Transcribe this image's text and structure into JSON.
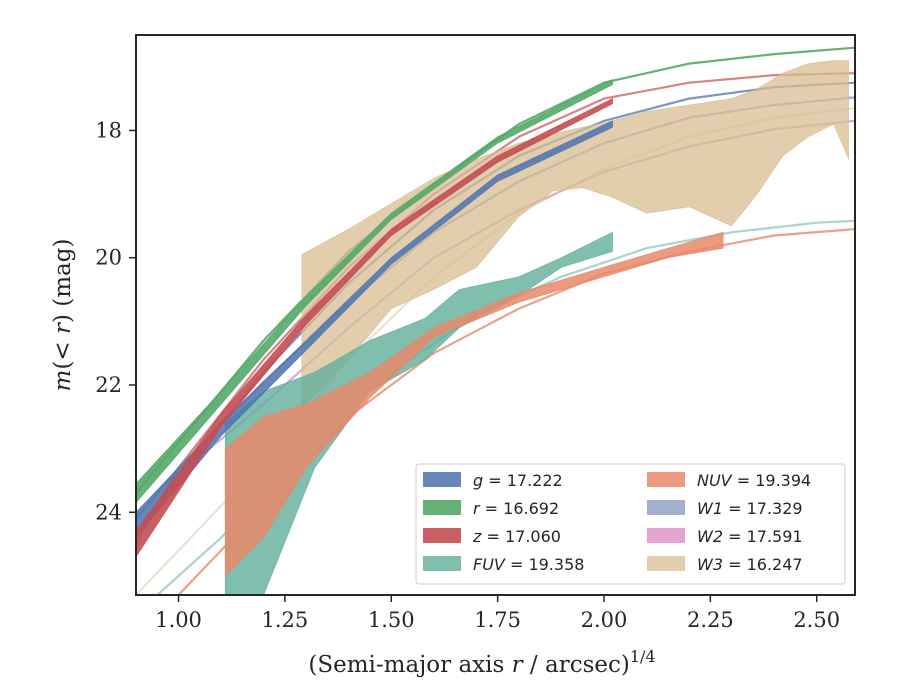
{
  "chart_data": {
    "type": "area",
    "xlabel": "(Semi-major axis r / arcsec)",
    "xlabel_parts": {
      "pre": "(Semi-major axis ",
      "var": "r",
      "post": " / arcsec)",
      "sup": "1/4"
    },
    "ylabel": "m(< r) (mag)",
    "ylabel_parts": {
      "m": "m",
      "open": "(",
      "lt": "<",
      "r": "r",
      "close": ")",
      "unit": " (mag)"
    },
    "xlim": [
      0.9,
      2.59
    ],
    "ylim": [
      25.3,
      16.5
    ],
    "y_inverted": true,
    "xticks": [
      "1.00",
      "1.25",
      "1.50",
      "1.75",
      "2.00",
      "2.25",
      "2.50"
    ],
    "yticks": [
      "18",
      "20",
      "22",
      "24"
    ],
    "legend_placement": "lower-right",
    "series": [
      {
        "name": "g",
        "name_display": "g = 17.222",
        "mag": "17.222",
        "color": "#4c72b0",
        "band_opacity": 0.85,
        "fit_opacity": 0.75,
        "x": [
          0.9,
          1.1,
          1.3,
          1.5,
          1.75,
          2.02
        ],
        "lo": [
          24.0,
          22.6,
          21.3,
          20.0,
          18.7,
          17.85
        ],
        "hi": [
          24.4,
          22.8,
          21.45,
          20.1,
          18.8,
          17.95
        ],
        "fit_x": [
          0.9,
          1.0,
          1.2,
          1.4,
          1.6,
          1.8,
          2.0,
          2.2,
          2.4,
          2.59
        ],
        "fit_y": [
          24.35,
          23.4,
          21.8,
          20.4,
          19.25,
          18.4,
          17.85,
          17.5,
          17.32,
          17.25
        ]
      },
      {
        "name": "r",
        "name_display": "r = 16.692",
        "mag": "16.692",
        "color": "#55a868",
        "band_opacity": 0.9,
        "fit_opacity": 0.9,
        "x": [
          0.9,
          1.1,
          1.3,
          1.5,
          1.75,
          2.02
        ],
        "lo": [
          23.55,
          22.1,
          20.6,
          19.3,
          18.1,
          17.2
        ],
        "hi": [
          23.85,
          22.3,
          20.75,
          19.4,
          18.2,
          17.28
        ],
        "fit_x": [
          0.9,
          1.0,
          1.2,
          1.4,
          1.6,
          1.8,
          2.0,
          2.2,
          2.4,
          2.59
        ],
        "fit_y": [
          23.7,
          22.9,
          21.3,
          19.9,
          18.85,
          17.9,
          17.25,
          16.95,
          16.8,
          16.7
        ]
      },
      {
        "name": "z",
        "name_display": "z = 17.060",
        "mag": "17.060",
        "color": "#c44e52",
        "band_opacity": 0.9,
        "fit_opacity": 0.7,
        "x": [
          0.9,
          1.1,
          1.3,
          1.5,
          1.75,
          2.02
        ],
        "lo": [
          24.3,
          22.45,
          20.9,
          19.55,
          18.4,
          17.5
        ],
        "hi": [
          24.7,
          22.65,
          21.05,
          19.65,
          18.5,
          17.58
        ],
        "fit_x": [
          0.9,
          1.0,
          1.2,
          1.4,
          1.6,
          1.8,
          2.0,
          2.2,
          2.4,
          2.59
        ],
        "fit_y": [
          24.5,
          23.3,
          21.6,
          20.15,
          19.0,
          18.1,
          17.5,
          17.25,
          17.13,
          17.1
        ]
      },
      {
        "name": "FUV",
        "name_display": "FUV = 19.358",
        "mag": "19.358",
        "color": "#64b09c",
        "band_opacity": 0.82,
        "fit_opacity": 0.55,
        "x": [
          1.11,
          1.2,
          1.32,
          1.45,
          1.58,
          1.66,
          1.8,
          1.9,
          2.02
        ],
        "lo": [
          22.6,
          22.1,
          21.8,
          21.3,
          20.95,
          20.5,
          20.3,
          20.0,
          19.6
        ],
        "hi": [
          25.3,
          25.3,
          23.3,
          22.1,
          21.6,
          21.1,
          20.6,
          20.15,
          19.9
        ],
        "fit_x": [
          0.95,
          1.1,
          1.3,
          1.5,
          1.7,
          1.9,
          2.1,
          2.3,
          2.5,
          2.59
        ],
        "fit_y": [
          25.3,
          24.4,
          22.9,
          21.8,
          20.9,
          20.3,
          19.85,
          19.6,
          19.45,
          19.42
        ]
      },
      {
        "name": "NUV",
        "name_display": "NUV = 19.394",
        "mag": "19.394",
        "color": "#e8896a",
        "band_opacity": 0.85,
        "fit_opacity": 0.8,
        "x": [
          1.11,
          1.2,
          1.3,
          1.45,
          1.6,
          1.8,
          2.0,
          2.15,
          2.28
        ],
        "lo": [
          23.0,
          22.5,
          22.3,
          21.8,
          21.1,
          20.55,
          20.15,
          19.85,
          19.6
        ],
        "hi": [
          25.0,
          24.4,
          23.3,
          22.2,
          21.25,
          20.7,
          20.3,
          20.0,
          19.85
        ],
        "fit_x": [
          1.0,
          1.2,
          1.4,
          1.6,
          1.8,
          2.0,
          2.2,
          2.4,
          2.59
        ],
        "fit_y": [
          25.3,
          23.9,
          22.5,
          21.5,
          20.8,
          20.25,
          19.9,
          19.65,
          19.55
        ]
      },
      {
        "name": "W1",
        "name_display": "W1 = 17.329",
        "mag": "17.329",
        "color": "#8c9dc2",
        "band_opacity": 0.8,
        "fit_opacity": 0.85,
        "x": [],
        "lo": [],
        "hi": [],
        "fit_x": [
          0.9,
          1.0,
          1.2,
          1.4,
          1.6,
          1.8,
          2.0,
          2.2,
          2.4,
          2.59
        ],
        "fit_y": [
          24.1,
          23.3,
          21.95,
          20.7,
          19.6,
          18.8,
          18.2,
          17.8,
          17.6,
          17.48
        ]
      },
      {
        "name": "W2",
        "name_display": "W2 = 17.591",
        "mag": "17.591",
        "color": "#dd8fc4",
        "band_opacity": 0.8,
        "fit_opacity": 0.8,
        "x": [],
        "lo": [],
        "hi": [],
        "fit_x": [
          0.9,
          1.0,
          1.2,
          1.4,
          1.6,
          1.8,
          2.0,
          2.2,
          2.4,
          2.59
        ],
        "fit_y": [
          24.3,
          23.4,
          22.3,
          21.1,
          20.0,
          19.25,
          18.65,
          18.25,
          17.98,
          17.85
        ]
      },
      {
        "name": "W3",
        "name_display": "W3 = 16.247",
        "mag": "16.247",
        "color": "#d8bc92",
        "band_opacity": 0.75,
        "fit_opacity": 0.45,
        "x": [
          1.29,
          1.4,
          1.5,
          1.6,
          1.7,
          1.8,
          1.88,
          1.95,
          2.02,
          2.1,
          2.2,
          2.3,
          2.36,
          2.42,
          2.48,
          2.54,
          2.575
        ],
        "lo": [
          19.95,
          19.55,
          19.15,
          18.75,
          18.45,
          18.2,
          18.05,
          17.95,
          17.85,
          17.7,
          17.6,
          17.5,
          17.35,
          17.1,
          16.95,
          16.9,
          16.9
        ],
        "hi": [
          22.35,
          21.6,
          20.8,
          20.5,
          20.15,
          19.35,
          18.95,
          18.9,
          19.05,
          19.3,
          19.2,
          19.5,
          19.0,
          18.4,
          18.1,
          17.9,
          18.45
        ],
        "fit_x": [
          0.9,
          1.0,
          1.2,
          1.4,
          1.6,
          1.8,
          2.0,
          2.2,
          2.4,
          2.59
        ],
        "fit_y": [
          25.3,
          24.6,
          23.2,
          21.6,
          20.3,
          19.3,
          18.6,
          18.1,
          17.8,
          17.65
        ]
      }
    ]
  }
}
